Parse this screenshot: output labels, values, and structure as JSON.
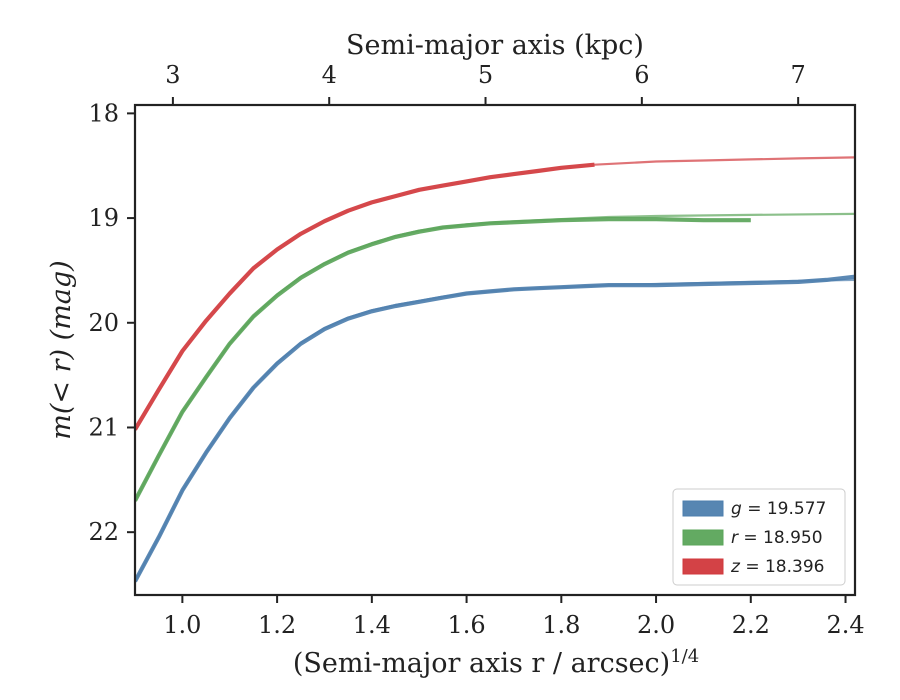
{
  "chart_data": {
    "type": "line",
    "title": "",
    "xlabel": "(Semi-major axis r / arcsec)",
    "xlabel_sup": "1/4",
    "ylabel": "m(< r) (mag)",
    "top_xlabel": "Semi-major axis (kpc)",
    "xlim": [
      0.9,
      2.42
    ],
    "ylim": [
      22.6,
      17.92
    ],
    "y_inverted": true,
    "x_ticks": [
      1.0,
      1.2,
      1.4,
      1.6,
      1.8,
      2.0,
      2.2,
      2.4
    ],
    "x_tick_labels": [
      "1.0",
      "1.2",
      "1.4",
      "1.6",
      "1.8",
      "2.0",
      "2.2",
      "2.4"
    ],
    "y_ticks": [
      18,
      19,
      20,
      21,
      22
    ],
    "y_tick_labels": [
      "18",
      "19",
      "20",
      "21",
      "22"
    ],
    "top_x_ticks_kpc": [
      3,
      4,
      5,
      6,
      7
    ],
    "top_x_tick_labels": [
      "3",
      "4",
      "5",
      "6",
      "7"
    ],
    "top_x_positions": [
      0.98,
      1.31,
      1.64,
      1.97,
      2.3
    ],
    "legend_position": "lower-right",
    "grid": false,
    "series": [
      {
        "name": "g = 19.577",
        "band": "g",
        "color": "#4e7fae",
        "data_x": [
          0.9,
          0.95,
          1.0,
          1.05,
          1.1,
          1.15,
          1.2,
          1.25,
          1.3,
          1.35,
          1.4,
          1.45,
          1.5,
          1.55,
          1.6,
          1.65,
          1.7,
          1.75,
          1.8,
          1.85,
          1.9,
          2.0,
          2.1,
          2.2,
          2.3,
          2.36,
          2.42
        ],
        "data_y": [
          22.47,
          22.05,
          21.6,
          21.24,
          20.91,
          20.62,
          20.39,
          20.2,
          20.06,
          19.96,
          19.89,
          19.84,
          19.8,
          19.76,
          19.72,
          19.7,
          19.68,
          19.67,
          19.66,
          19.65,
          19.64,
          19.64,
          19.63,
          19.62,
          19.61,
          19.59,
          19.56
        ],
        "model_x": [
          0.9,
          0.95,
          1.0,
          1.05,
          1.1,
          1.15,
          1.2,
          1.25,
          1.3,
          1.35,
          1.4,
          1.45,
          1.5,
          1.55,
          1.6,
          1.65,
          1.7,
          1.8,
          1.9,
          2.0,
          2.1,
          2.2,
          2.3,
          2.42
        ],
        "model_y": [
          22.47,
          22.05,
          21.6,
          21.24,
          20.91,
          20.62,
          20.38,
          20.19,
          20.05,
          19.95,
          19.88,
          19.83,
          19.79,
          19.75,
          19.72,
          19.7,
          19.68,
          19.66,
          19.64,
          19.63,
          19.62,
          19.61,
          19.6,
          19.59
        ]
      },
      {
        "name": "r = 18.950",
        "band": "r",
        "color": "#5ba55a",
        "data_x": [
          0.9,
          0.95,
          1.0,
          1.05,
          1.1,
          1.15,
          1.2,
          1.25,
          1.3,
          1.35,
          1.4,
          1.45,
          1.5,
          1.55,
          1.6,
          1.65,
          1.7,
          1.8,
          1.9,
          2.0,
          2.1,
          2.2
        ],
        "data_y": [
          21.7,
          21.27,
          20.85,
          20.52,
          20.2,
          19.94,
          19.74,
          19.57,
          19.44,
          19.33,
          19.25,
          19.18,
          19.13,
          19.09,
          19.07,
          19.05,
          19.04,
          19.02,
          19.01,
          19.01,
          19.02,
          19.02
        ],
        "model_x": [
          0.9,
          0.95,
          1.0,
          1.05,
          1.1,
          1.15,
          1.2,
          1.25,
          1.3,
          1.35,
          1.4,
          1.45,
          1.5,
          1.55,
          1.6,
          1.7,
          1.8,
          1.9,
          2.0,
          2.2,
          2.42
        ],
        "model_y": [
          21.7,
          21.27,
          20.85,
          20.52,
          20.2,
          19.94,
          19.73,
          19.56,
          19.43,
          19.32,
          19.24,
          19.17,
          19.12,
          19.09,
          19.06,
          19.03,
          19.01,
          18.99,
          18.98,
          18.97,
          18.96
        ]
      },
      {
        "name": "z = 18.396",
        "band": "z",
        "color": "#d1383c",
        "data_x": [
          0.9,
          0.95,
          1.0,
          1.05,
          1.1,
          1.15,
          1.2,
          1.25,
          1.3,
          1.35,
          1.4,
          1.45,
          1.5,
          1.55,
          1.6,
          1.65,
          1.7,
          1.75,
          1.8,
          1.87
        ],
        "data_y": [
          21.02,
          20.64,
          20.27,
          19.98,
          19.72,
          19.48,
          19.3,
          19.15,
          19.03,
          18.93,
          18.85,
          18.79,
          18.73,
          18.69,
          18.65,
          18.61,
          18.58,
          18.55,
          18.52,
          18.49
        ],
        "model_x": [
          1.87,
          2.0,
          2.1,
          2.2,
          2.3,
          2.42
        ],
        "model_y": [
          18.49,
          18.46,
          18.45,
          18.44,
          18.43,
          18.42
        ]
      }
    ]
  }
}
